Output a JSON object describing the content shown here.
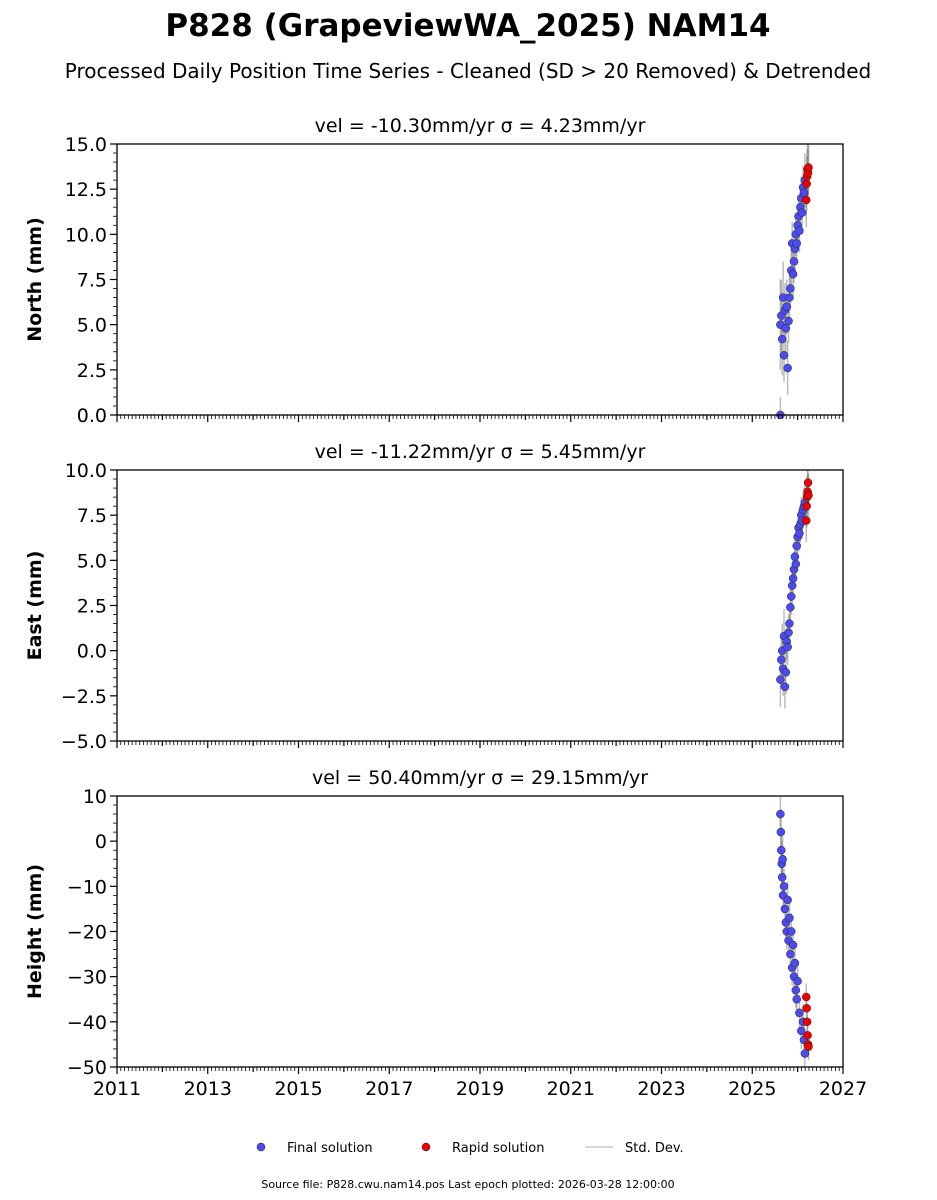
{
  "chart_data": {
    "type": "scatter",
    "title": "P828 (GrapeviewWA_2025) NAM14",
    "subtitle": "Processed Daily Position Time Series - Cleaned (SD > 20 Removed) & Detrended",
    "xlabel": "",
    "xlim": [
      2011,
      2027
    ],
    "xticks": [
      "2011",
      "2013",
      "2015",
      "2017",
      "2019",
      "2021",
      "2023",
      "2025",
      "2027"
    ],
    "legend": {
      "placement": "bottom-center",
      "entries": [
        "Final solution",
        "Rapid solution",
        "Std. Dev."
      ]
    },
    "colors": {
      "final": "#4b4bf0",
      "rapid": "#ee0000",
      "sd": "#999999"
    },
    "footer": "Source file: P828.cwu.nam14.pos  Last epoch plotted: 2026-03-28 12:00:00",
    "panels": [
      {
        "title": "vel = -10.30mm/yr   σ = 4.23mm/yr",
        "ylabel": "North (mm)",
        "ylim": [
          0,
          15
        ],
        "yticks": [
          "0.0",
          "2.5",
          "5.0",
          "7.5",
          "10.0",
          "12.5",
          "15.0"
        ],
        "final": [
          [
            2025.62,
            0,
            1.0
          ],
          [
            2025.62,
            5.0,
            2.5
          ],
          [
            2025.64,
            5.5,
            2
          ],
          [
            2025.66,
            4.2,
            2
          ],
          [
            2025.68,
            6.5,
            2
          ],
          [
            2025.7,
            3.3,
            1.5
          ],
          [
            2025.72,
            5.8,
            1.5
          ],
          [
            2025.74,
            4.8,
            1.5
          ],
          [
            2025.76,
            6.0,
            1.5
          ],
          [
            2025.78,
            2.6,
            1.5
          ],
          [
            2025.8,
            5.2,
            1.2
          ],
          [
            2025.82,
            6.5,
            1.2
          ],
          [
            2025.84,
            7.0,
            1.2
          ],
          [
            2025.86,
            8.0,
            1.2
          ],
          [
            2025.88,
            9.5,
            1.2
          ],
          [
            2025.9,
            7.8,
            1.2
          ],
          [
            2025.92,
            8.5,
            1.2
          ],
          [
            2025.94,
            9.2,
            1.2
          ],
          [
            2025.96,
            10.0,
            1.2
          ],
          [
            2025.98,
            9.5,
            1.2
          ],
          [
            2026.0,
            10.5,
            1.2
          ],
          [
            2026.02,
            11.0,
            1.2
          ],
          [
            2026.04,
            10.2,
            1.2
          ],
          [
            2026.06,
            11.5,
            1.2
          ],
          [
            2026.08,
            12.0,
            1.2
          ],
          [
            2026.1,
            11.2,
            1.2
          ],
          [
            2026.12,
            12.6,
            1.2
          ],
          [
            2026.14,
            12.3,
            1.2
          ],
          [
            2026.16,
            13.0,
            1.5
          ]
        ],
        "rapid": [
          [
            2026.19,
            11.9,
            1.5
          ],
          [
            2026.2,
            12.8,
            1.5
          ],
          [
            2026.21,
            13.2,
            1.5
          ],
          [
            2026.22,
            13.6,
            1.5
          ],
          [
            2026.23,
            13.4,
            1.5
          ],
          [
            2026.24,
            13.7,
            1.5
          ]
        ]
      },
      {
        "title": "vel = -11.22mm/yr   σ = 5.45mm/yr",
        "ylabel": "East (mm)",
        "ylim": [
          -5,
          10
        ],
        "yticks": [
          "−5.0",
          "−2.5",
          "0.0",
          "2.5",
          "5.0",
          "7.5",
          "10.0"
        ],
        "final": [
          [
            2025.62,
            -1.6,
            1.5
          ],
          [
            2025.64,
            -0.5,
            1.5
          ],
          [
            2025.66,
            0.0,
            1.5
          ],
          [
            2025.68,
            -1.0,
            1.5
          ],
          [
            2025.7,
            0.8,
            1.5
          ],
          [
            2025.72,
            -2.0,
            1.2
          ],
          [
            2025.74,
            -1.2,
            1.2
          ],
          [
            2025.76,
            0.5,
            1
          ],
          [
            2025.78,
            0.2,
            1
          ],
          [
            2025.8,
            1.0,
            1
          ],
          [
            2025.82,
            1.5,
            1
          ],
          [
            2025.84,
            2.4,
            1
          ],
          [
            2025.86,
            3.0,
            1
          ],
          [
            2025.88,
            3.6,
            1
          ],
          [
            2025.9,
            4.0,
            1
          ],
          [
            2025.92,
            4.5,
            1
          ],
          [
            2025.94,
            5.2,
            1
          ],
          [
            2025.96,
            4.8,
            1
          ],
          [
            2025.98,
            5.8,
            1
          ],
          [
            2026.0,
            6.3,
            1
          ],
          [
            2026.02,
            6.8,
            1
          ],
          [
            2026.04,
            6.5,
            1
          ],
          [
            2026.06,
            7.0,
            1
          ],
          [
            2026.08,
            7.5,
            1
          ],
          [
            2026.1,
            7.2,
            1
          ],
          [
            2026.12,
            7.8,
            1
          ],
          [
            2026.14,
            8.0,
            1
          ],
          [
            2026.16,
            8.2,
            1
          ]
        ],
        "rapid": [
          [
            2026.19,
            7.2,
            1.2
          ],
          [
            2026.2,
            8.0,
            1.2
          ],
          [
            2026.21,
            8.5,
            1.2
          ],
          [
            2026.22,
            8.8,
            1.2
          ],
          [
            2026.23,
            9.3,
            1.2
          ],
          [
            2026.24,
            8.6,
            1.2
          ]
        ]
      },
      {
        "title": "vel = 50.40mm/yr   σ = 29.15mm/yr",
        "ylabel": "Height (mm)",
        "ylim": [
          -50,
          10
        ],
        "yticks": [
          "−50",
          "−40",
          "−30",
          "−20",
          "−10",
          "0",
          "10"
        ],
        "final": [
          [
            2025.62,
            6,
            5
          ],
          [
            2025.63,
            2,
            5
          ],
          [
            2025.64,
            -2,
            5
          ],
          [
            2025.65,
            -5,
            5
          ],
          [
            2025.66,
            -8,
            5
          ],
          [
            2025.67,
            -4,
            5
          ],
          [
            2025.68,
            -12,
            4
          ],
          [
            2025.7,
            -10,
            4
          ],
          [
            2025.72,
            -15,
            4
          ],
          [
            2025.74,
            -18,
            4
          ],
          [
            2025.76,
            -20,
            4
          ],
          [
            2025.78,
            -13,
            4
          ],
          [
            2025.8,
            -22,
            4
          ],
          [
            2025.82,
            -17,
            4
          ],
          [
            2025.84,
            -25,
            4
          ],
          [
            2025.86,
            -20,
            4
          ],
          [
            2025.88,
            -28,
            4
          ],
          [
            2025.9,
            -23,
            4
          ],
          [
            2025.92,
            -30,
            4
          ],
          [
            2025.94,
            -27,
            4
          ],
          [
            2025.96,
            -33,
            4
          ],
          [
            2025.98,
            -35,
            4
          ],
          [
            2026.0,
            -31,
            4
          ],
          [
            2026.04,
            -38,
            4
          ],
          [
            2026.08,
            -42,
            4
          ],
          [
            2026.12,
            -40,
            4
          ],
          [
            2026.14,
            -44,
            4
          ],
          [
            2026.16,
            -47,
            4
          ]
        ],
        "rapid": [
          [
            2026.19,
            -34.5,
            3
          ],
          [
            2026.2,
            -37,
            3
          ],
          [
            2026.21,
            -40,
            3
          ],
          [
            2026.22,
            -43,
            3
          ],
          [
            2026.23,
            -45,
            3
          ],
          [
            2026.24,
            -45.5,
            3
          ]
        ]
      }
    ]
  }
}
